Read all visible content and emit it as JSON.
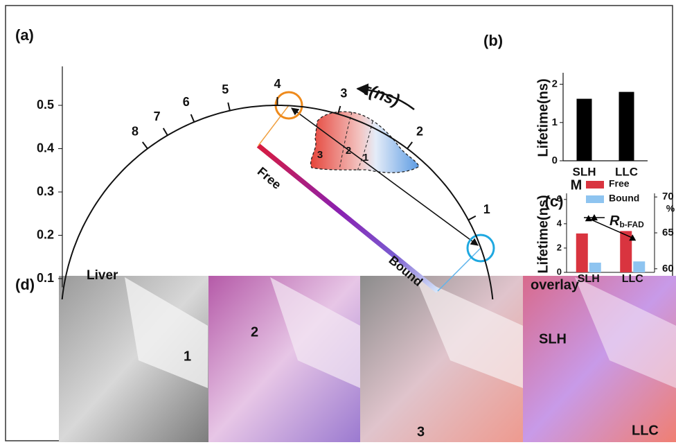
{
  "chart_data": [
    {
      "type": "phasor",
      "panel_label": "(a)",
      "ylim": [
        0.08,
        0.59
      ],
      "yticks": [
        0.1,
        0.2,
        0.3,
        0.4,
        0.5
      ],
      "lifetime_ticks": [
        1,
        2,
        3,
        4,
        5,
        6,
        7,
        8
      ],
      "lifetime_label": "τ(ns)",
      "free_label": "Free",
      "bound_label": "Bound",
      "tissue_label": "Liver",
      "region_labels": [
        "3",
        "2",
        "1"
      ]
    },
    {
      "type": "bar",
      "panel_label": "(b)",
      "ylabel": "Lifetime(ns)",
      "categories": [
        "SLH",
        "LLC"
      ],
      "values": [
        1.62,
        1.8
      ],
      "color": "#000000",
      "ylim": [
        0,
        2.3
      ],
      "yticks": [
        0,
        1,
        2
      ]
    },
    {
      "type": "bar_line",
      "panel_label": "(c)",
      "corner_label": "M",
      "ylabel": "Lifetime(ns)",
      "y2label": "%",
      "categories": [
        "SLH",
        "LLC"
      ],
      "ylim": [
        0,
        6.5
      ],
      "yticks": [
        0,
        2,
        4,
        6
      ],
      "y2lim": [
        59.5,
        70.5
      ],
      "y2ticks": [
        60,
        65,
        70
      ],
      "series": [
        {
          "name": "Free",
          "color": "#d9343f",
          "values": [
            3.2,
            3.4
          ]
        },
        {
          "name": "Bound",
          "color": "#8ec4f0",
          "values": [
            0.8,
            0.9
          ]
        },
        {
          "name": "R",
          "name_sub": "b-FAD",
          "color": "#000000",
          "axis": "y2",
          "values": [
            67,
            64.3
          ]
        }
      ]
    }
  ],
  "panel_d": {
    "label": "(d)",
    "images": [
      {
        "label": "1"
      },
      {
        "label": "2"
      },
      {
        "label": "3"
      },
      {
        "label": "overlay",
        "tags": [
          "SLH",
          "LLC"
        ]
      }
    ]
  }
}
